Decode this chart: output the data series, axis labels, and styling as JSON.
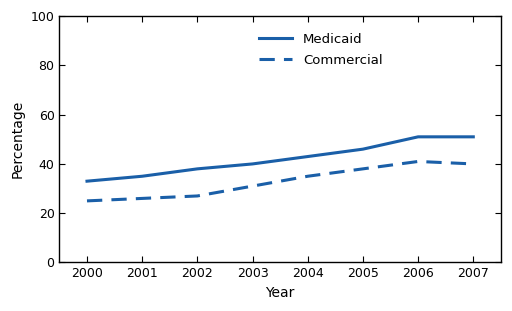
{
  "years": [
    2000,
    2001,
    2002,
    2003,
    2004,
    2005,
    2006,
    2007
  ],
  "medicaid": [
    33,
    35,
    38,
    40,
    43,
    46,
    51,
    51
  ],
  "commercial": [
    25,
    26,
    27,
    31,
    35,
    38,
    41,
    40
  ],
  "line_color": "#1a5fa8",
  "xlabel": "Year",
  "ylabel": "Percentage",
  "ylim": [
    0,
    100
  ],
  "xlim": [
    1999.5,
    2007.5
  ],
  "yticks": [
    0,
    20,
    40,
    60,
    80,
    100
  ],
  "xticks": [
    2000,
    2001,
    2002,
    2003,
    2004,
    2005,
    2006,
    2007
  ],
  "legend_medicaid": "Medicaid",
  "legend_commercial": "Commercial",
  "linewidth": 2.2
}
